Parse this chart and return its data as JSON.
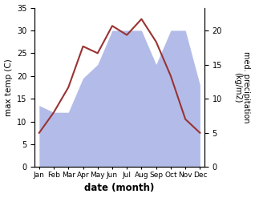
{
  "months": [
    "Jan",
    "Feb",
    "Mar",
    "Apr",
    "May",
    "Jun",
    "Jul",
    "Aug",
    "Sep",
    "Oct",
    "Nov",
    "Dec"
  ],
  "temperature": [
    7.5,
    12.0,
    17.5,
    26.5,
    25.0,
    31.0,
    29.0,
    32.5,
    27.5,
    20.0,
    10.5,
    7.5
  ],
  "precipitation": [
    9,
    8,
    8,
    13,
    15,
    20,
    20,
    20,
    15,
    20,
    20,
    12
  ],
  "temp_color": "#993333",
  "precip_fill_color": "#b3bce8",
  "ylim_left": [
    0,
    35
  ],
  "ylim_right": [
    0,
    23.33
  ],
  "yticks_left": [
    0,
    5,
    10,
    15,
    20,
    25,
    30,
    35
  ],
  "yticks_right": [
    0,
    5,
    10,
    15,
    20
  ],
  "xlabel": "date (month)",
  "ylabel_left": "max temp (C)",
  "ylabel_right": "med. precipitation\n(kg/m2)",
  "bg_color": "#ffffff"
}
